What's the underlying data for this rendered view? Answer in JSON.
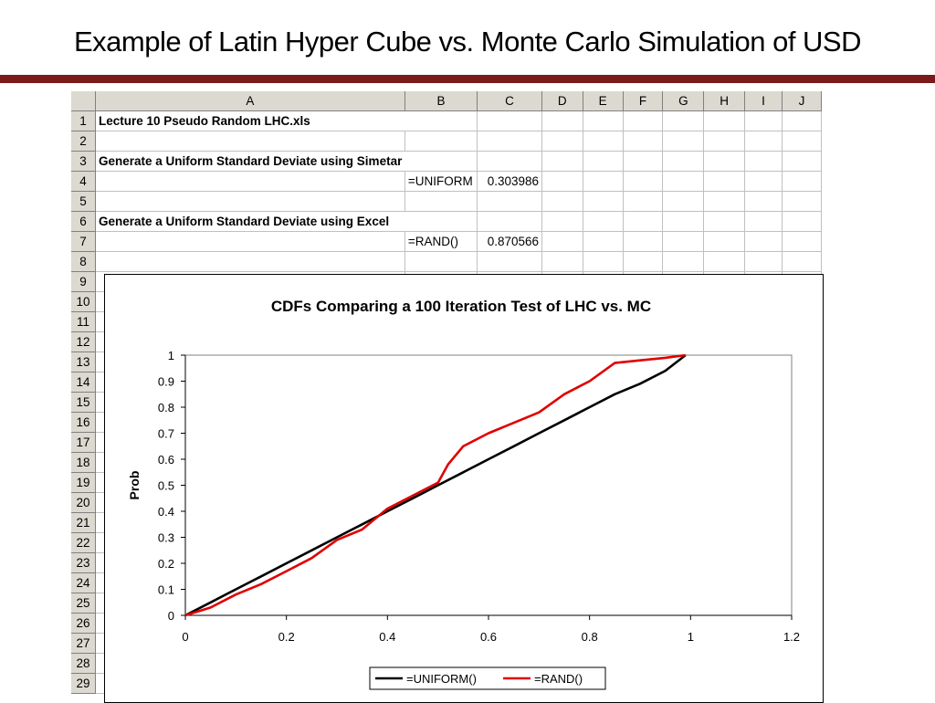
{
  "slide": {
    "title": "Example of Latin Hyper Cube vs. Monte Carlo Simulation of USD"
  },
  "sheet": {
    "columns": [
      "A",
      "B",
      "C",
      "D",
      "E",
      "F",
      "G",
      "H",
      "I",
      "J"
    ],
    "rows": [
      "1",
      "2",
      "3",
      "4",
      "5",
      "6",
      "7",
      "8",
      "9",
      "10",
      "11",
      "12",
      "13",
      "14",
      "15",
      "16",
      "17",
      "18",
      "19",
      "20",
      "21",
      "22",
      "23",
      "24",
      "25",
      "26",
      "27",
      "28",
      "29"
    ],
    "cells": {
      "a1": "Lecture 10 Pseudo Random LHC.xls",
      "a3": "Generate a Uniform Standard Deviate using Simetar",
      "b4": "=UNIFORM",
      "c4": "0.303986",
      "a6": "Generate a Uniform Standard Deviate using Excel",
      "b7": "=RAND()",
      "c7": "0.870566"
    }
  },
  "chart_data": {
    "type": "line",
    "title": "CDFs Comparing a 100 Iteration Test of LHC vs. MC",
    "xlabel": "",
    "ylabel": "Prob",
    "xlim": [
      0,
      1.2
    ],
    "ylim": [
      0,
      1
    ],
    "xticks": [
      "0",
      "0.2",
      "0.4",
      "0.6",
      "0.8",
      "1",
      "1.2"
    ],
    "yticks": [
      "0",
      "0.1",
      "0.2",
      "0.3",
      "0.4",
      "0.5",
      "0.6",
      "0.7",
      "0.8",
      "0.9",
      "1"
    ],
    "legend_position": "bottom-right",
    "series": [
      {
        "name": "=UNIFORM()",
        "color": "#000000",
        "x": [
          0,
          0.05,
          0.1,
          0.15,
          0.2,
          0.25,
          0.3,
          0.35,
          0.4,
          0.45,
          0.5,
          0.55,
          0.6,
          0.65,
          0.7,
          0.75,
          0.8,
          0.85,
          0.9,
          0.95,
          0.99
        ],
        "y": [
          0,
          0.05,
          0.1,
          0.15,
          0.2,
          0.25,
          0.3,
          0.35,
          0.4,
          0.45,
          0.5,
          0.55,
          0.6,
          0.65,
          0.7,
          0.75,
          0.8,
          0.85,
          0.89,
          0.94,
          1.0
        ]
      },
      {
        "name": "=RAND()",
        "color": "#e00000",
        "x": [
          0,
          0.05,
          0.1,
          0.15,
          0.2,
          0.25,
          0.3,
          0.35,
          0.4,
          0.45,
          0.5,
          0.52,
          0.55,
          0.6,
          0.65,
          0.7,
          0.75,
          0.8,
          0.85,
          0.9,
          0.95,
          0.99
        ],
        "y": [
          0,
          0.03,
          0.08,
          0.12,
          0.17,
          0.22,
          0.29,
          0.33,
          0.41,
          0.46,
          0.51,
          0.58,
          0.65,
          0.7,
          0.74,
          0.78,
          0.85,
          0.9,
          0.97,
          0.98,
          0.99,
          1.0
        ]
      }
    ]
  }
}
